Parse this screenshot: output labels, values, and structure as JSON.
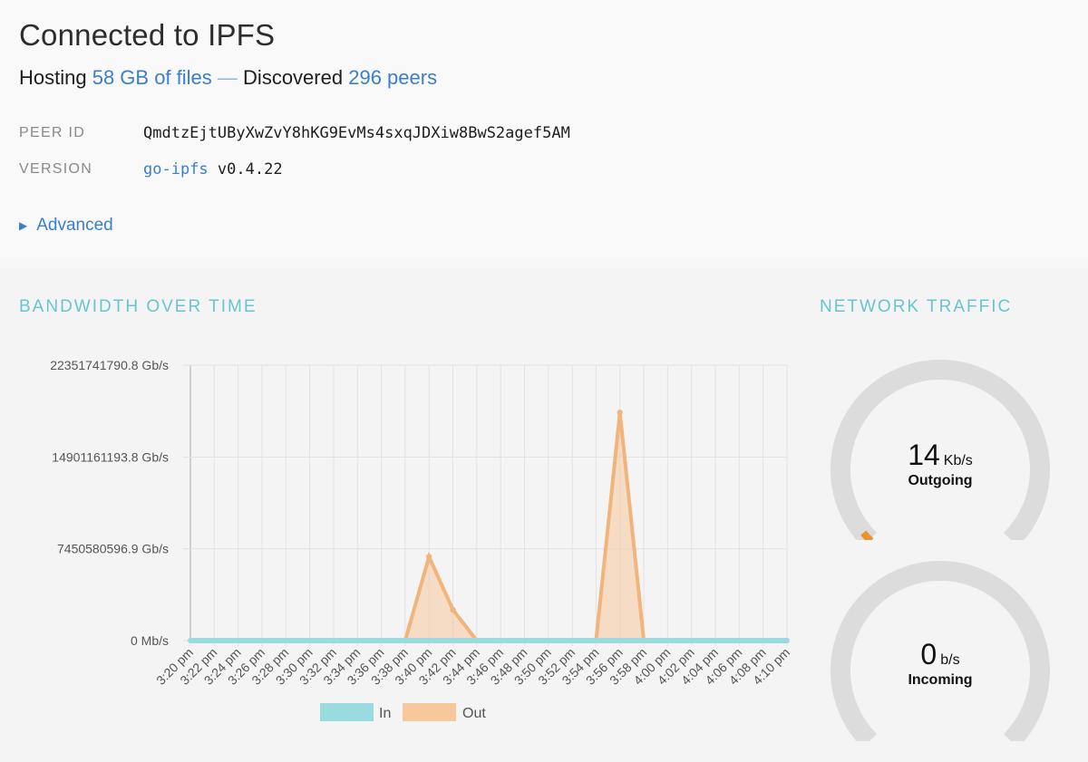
{
  "header": {
    "title": "Connected to IPFS",
    "hosting_prefix": "Hosting",
    "hosting_link": "58 GB of files",
    "separator": "—",
    "discovered_prefix": "Discovered",
    "peers_link": "296 peers"
  },
  "meta": {
    "peer_id_label": "PEER ID",
    "peer_id_value": "QmdtzEjtUByXwZvY8hKG9EvMs4sxqJDXiw8BwS2agef5AM",
    "version_label": "VERSION",
    "version_link": "go-ipfs",
    "version_number": "v0.4.22"
  },
  "advanced_label": "Advanced",
  "bandwidth": {
    "title": "BANDWIDTH OVER TIME",
    "legend_in": "In",
    "legend_out": "Out"
  },
  "network": {
    "title": "NETWORK TRAFFIC",
    "outgoing_value": "14",
    "outgoing_unit": "Kb/s",
    "outgoing_label": "Outgoing",
    "outgoing_fraction": 0.02,
    "incoming_value": "0",
    "incoming_unit": "b/s",
    "incoming_label": "Incoming",
    "incoming_fraction": 0
  },
  "colors": {
    "in": "#9adbdf",
    "out": "#f7c89c",
    "out_stroke": "#f0b47c",
    "gauge_track": "#dcdcdc",
    "gauge_fill": "#ec9232",
    "link": "#3a7ecf",
    "section_title": "#69c4cd"
  },
  "chart_data": {
    "type": "line",
    "title": "BANDWIDTH OVER TIME",
    "xlabel": "",
    "ylabel": "",
    "y_tick_labels": [
      "0 Mb/s",
      "7450580596.9 Gb/s",
      "14901161193.8 Gb/s",
      "22351741790.8 Gb/s"
    ],
    "ylim": [
      0,
      22351741790.8
    ],
    "categories": [
      "3:20 pm",
      "3:22 pm",
      "3:24 pm",
      "3:26 pm",
      "3:28 pm",
      "3:30 pm",
      "3:32 pm",
      "3:34 pm",
      "3:36 pm",
      "3:38 pm",
      "3:40 pm",
      "3:42 pm",
      "3:44 pm",
      "3:46 pm",
      "3:48 pm",
      "3:50 pm",
      "3:52 pm",
      "3:54 pm",
      "3:56 pm",
      "3:58 pm",
      "4:00 pm",
      "4:02 pm",
      "4:04 pm",
      "4:06 pm",
      "4:08 pm",
      "4:10 pm"
    ],
    "grid": true,
    "legend_position": "bottom",
    "series": [
      {
        "name": "In",
        "values": [
          0,
          0,
          0,
          0,
          0,
          0,
          0,
          0,
          0,
          0,
          0,
          0,
          0,
          0,
          0,
          0,
          0,
          0,
          0,
          0,
          0,
          0,
          0,
          0,
          0,
          0
        ]
      },
      {
        "name": "Out",
        "values": [
          0,
          0,
          0,
          0,
          0,
          0,
          0,
          0,
          0,
          0,
          6800000000,
          2500000000,
          0,
          0,
          0,
          0,
          0,
          0,
          18500000000,
          0,
          0,
          0,
          0,
          0,
          0,
          0
        ]
      }
    ]
  }
}
